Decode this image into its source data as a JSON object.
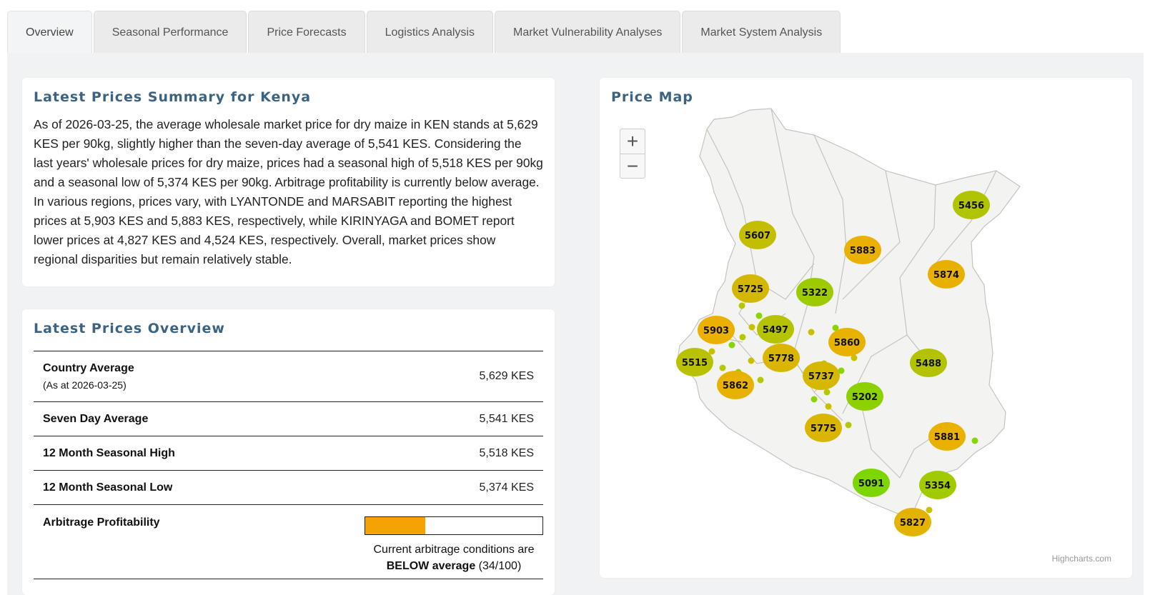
{
  "tabs": [
    "Overview",
    "Seasonal Performance",
    "Price Forecasts",
    "Logistics Analysis",
    "Market Vulnerability Analyses",
    "Market System Analysis"
  ],
  "summary": {
    "title": "Latest Prices Summary for Kenya",
    "text": "As of 2026-03-25, the average wholesale market price for dry maize in KEN stands at 5,629 KES per 90kg, slightly higher than the seven-day average of 5,541 KES. Considering the last years' wholesale prices for dry maize, prices had a seasonal high of 5,518 KES per 90kg and a seasonal low of 5,374 KES per 90kg. Arbitrage profitability is currently below average. In various regions, prices vary, with LYANTONDE and MARSABIT reporting the highest prices at 5,903 KES and 5,883 KES, respectively, while KIRINYAGA and BOMET report lower prices at 4,827 KES and 4,524 KES, respectively. Overall, market prices show regional disparities but remain relatively stable."
  },
  "overview": {
    "title": "Latest Prices Overview",
    "rows": [
      {
        "label": "Country Average",
        "sub": "(As at 2026-03-25)",
        "value": "5,629 KES"
      },
      {
        "label": "Seven Day Average",
        "value": "5,541 KES"
      },
      {
        "label": "12 Month Seasonal High",
        "value": "5,518 KES"
      },
      {
        "label": "12 Month Seasonal Low",
        "value": "5,374 KES"
      }
    ],
    "arbitrage": {
      "label": "Arbitrage Profitability",
      "text_prefix": "Current arbitrage conditions are",
      "level": "BELOW average",
      "score": "(34/100)",
      "score_value": 34,
      "bar_color": "#f5a300"
    }
  },
  "map": {
    "title": "Price Map",
    "zoom_in": "+",
    "zoom_out": "−",
    "credits": "Highcharts.com",
    "bubble_values": [
      5456,
      5607,
      5883,
      5874,
      5725,
      5322,
      5903,
      5497,
      5860,
      5515,
      5778,
      5488,
      5737,
      5862,
      5202,
      5775,
      5881,
      5091,
      5354,
      5827
    ]
  }
}
